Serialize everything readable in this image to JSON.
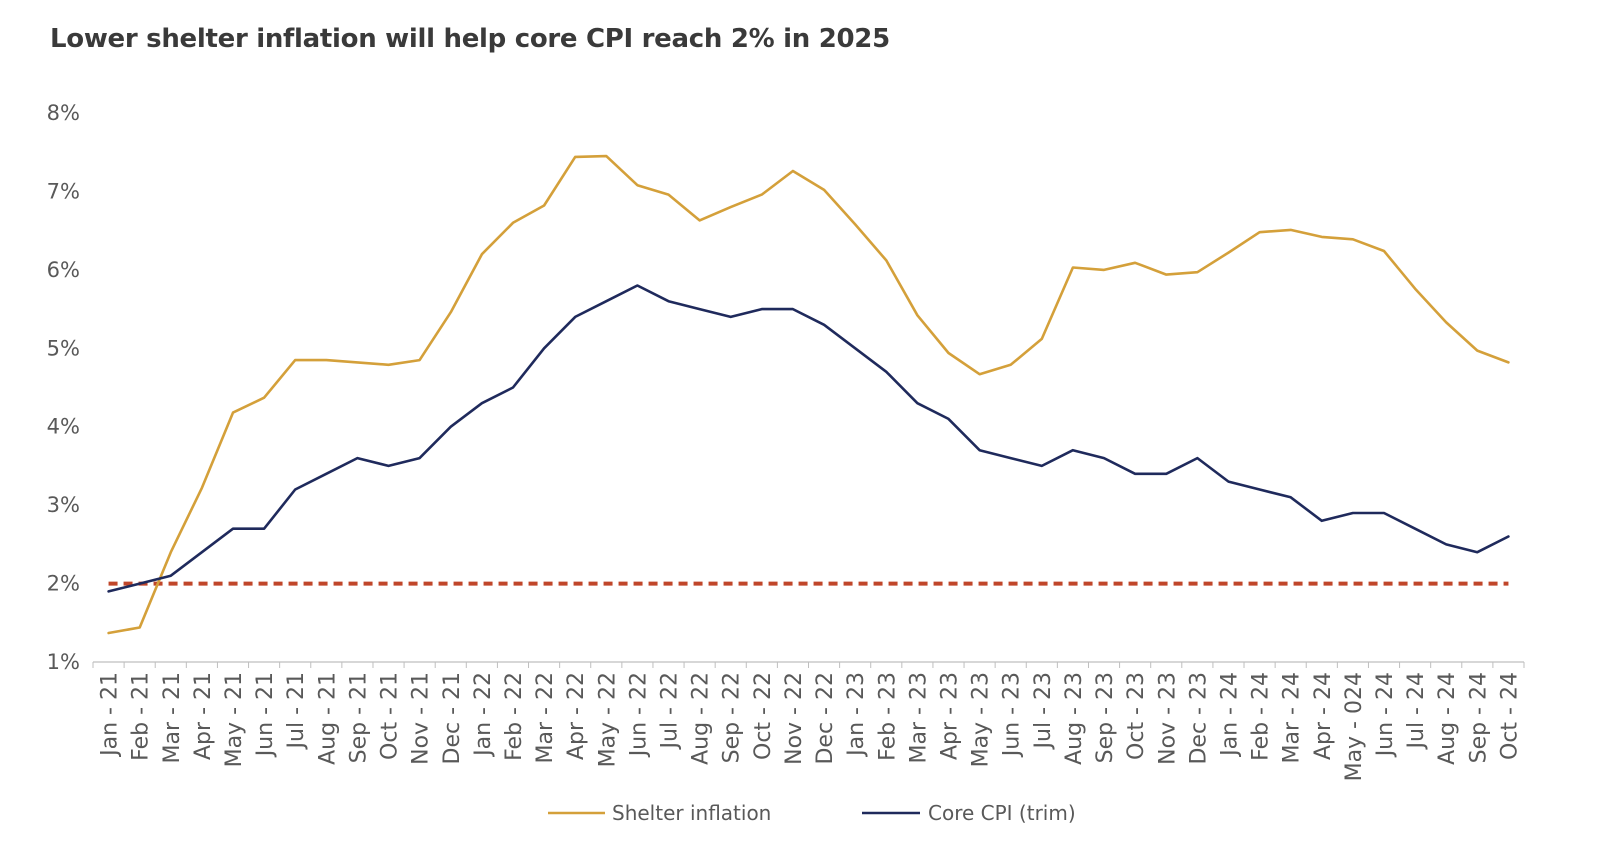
{
  "chart_data": {
    "type": "line",
    "title": "Lower shelter inflation will help core CPI reach 2% in 2025",
    "ylim": [
      1,
      8
    ],
    "yticks": [
      {
        "value": 1,
        "label": "1%"
      },
      {
        "value": 2,
        "label": "2%"
      },
      {
        "value": 3,
        "label": "3%"
      },
      {
        "value": 4,
        "label": "4%"
      },
      {
        "value": 5,
        "label": "5%"
      },
      {
        "value": 6,
        "label": "6%"
      },
      {
        "value": 7,
        "label": "7%"
      },
      {
        "value": 8,
        "label": "8%"
      }
    ],
    "categories": [
      "Jan - 21",
      "Feb - 21",
      "Mar - 21",
      "Apr - 21",
      "May - 21",
      "Jun - 21",
      "Jul - 21",
      "Aug - 21",
      "Sep - 21",
      "Oct - 21",
      "Nov - 21",
      "Dec - 21",
      "Jan - 22",
      "Feb - 22",
      "Mar - 22",
      "Apr - 22",
      "May - 22",
      "Jun - 22",
      "Jul - 22",
      "Aug - 22",
      "Sep - 22",
      "Oct - 22",
      "Nov - 22",
      "Dec - 22",
      "Jan - 23",
      "Feb - 23",
      "Mar - 23",
      "Apr - 23",
      "May - 23",
      "Jun - 23",
      "Jul - 23",
      "Aug - 23",
      "Sep - 23",
      "Oct - 23",
      "Nov - 23",
      "Dec - 23",
      "Jan - 24",
      "Feb - 24",
      "Mar - 24",
      "Apr - 24",
      "May - 024",
      "Jun - 24",
      "Jul - 24",
      "Aug - 24",
      "Sep - 24",
      "Oct - 24"
    ],
    "series": [
      {
        "name": "Shelter inflation",
        "color": "#D4A03A",
        "values": [
          1.37,
          1.44,
          2.4,
          3.22,
          4.18,
          4.37,
          4.85,
          4.85,
          4.82,
          4.79,
          4.85,
          5.46,
          6.2,
          6.6,
          6.82,
          7.44,
          7.45,
          7.08,
          6.96,
          6.63,
          6.8,
          6.96,
          7.26,
          7.02,
          6.58,
          6.12,
          5.42,
          4.94,
          4.67,
          4.79,
          5.12,
          6.03,
          6.0,
          6.09,
          5.94,
          5.97,
          6.22,
          6.48,
          6.51,
          6.42,
          6.39,
          6.24,
          5.76,
          5.33,
          4.97,
          4.82
        ]
      },
      {
        "name": "Core CPI (trim)",
        "color": "#1F2A5C",
        "values": [
          1.9,
          2.0,
          2.1,
          2.4,
          2.7,
          2.7,
          3.2,
          3.4,
          3.6,
          3.5,
          3.6,
          4.0,
          4.3,
          4.5,
          5.0,
          5.4,
          5.6,
          5.8,
          5.6,
          5.5,
          5.4,
          5.5,
          5.5,
          5.3,
          5.0,
          4.7,
          4.3,
          4.1,
          3.7,
          3.6,
          3.5,
          3.7,
          3.6,
          3.4,
          3.4,
          3.6,
          3.3,
          3.2,
          3.1,
          2.8,
          2.9,
          2.9,
          2.7,
          2.5,
          2.4,
          2.6
        ]
      }
    ],
    "target_line": {
      "value": 2,
      "color": "#C0462A"
    },
    "legend": {
      "position": "bottom"
    },
    "grid": false
  }
}
